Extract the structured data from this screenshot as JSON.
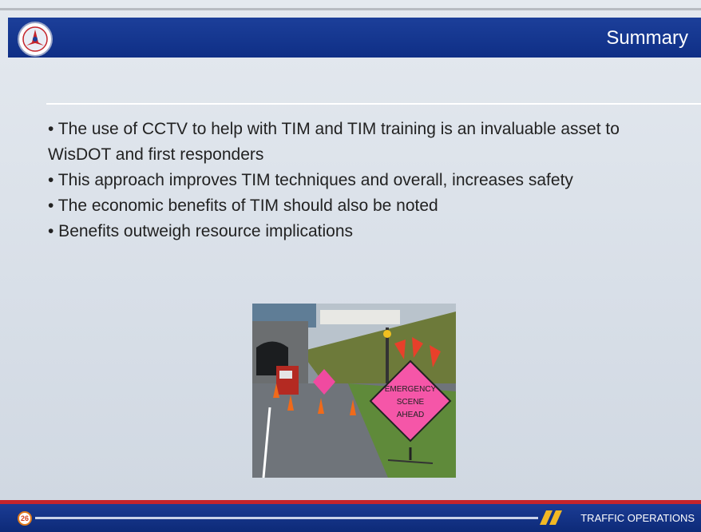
{
  "header": {
    "title": "Summary"
  },
  "bullets": [
    "• The use of CCTV to help with TIM and TIM training is an invaluable asset to WisDOT and first responders",
    "• This approach improves TIM techniques and overall, increases safety",
    "• The economic benefits of TIM should also be noted",
    "• Benefits outweigh resource implications"
  ],
  "photo": {
    "sign_text": [
      "EMERGENCY",
      "SCENE",
      "AHEAD"
    ]
  },
  "footer": {
    "page_number": "26",
    "label": "TRAFFIC OPERATIONS"
  }
}
